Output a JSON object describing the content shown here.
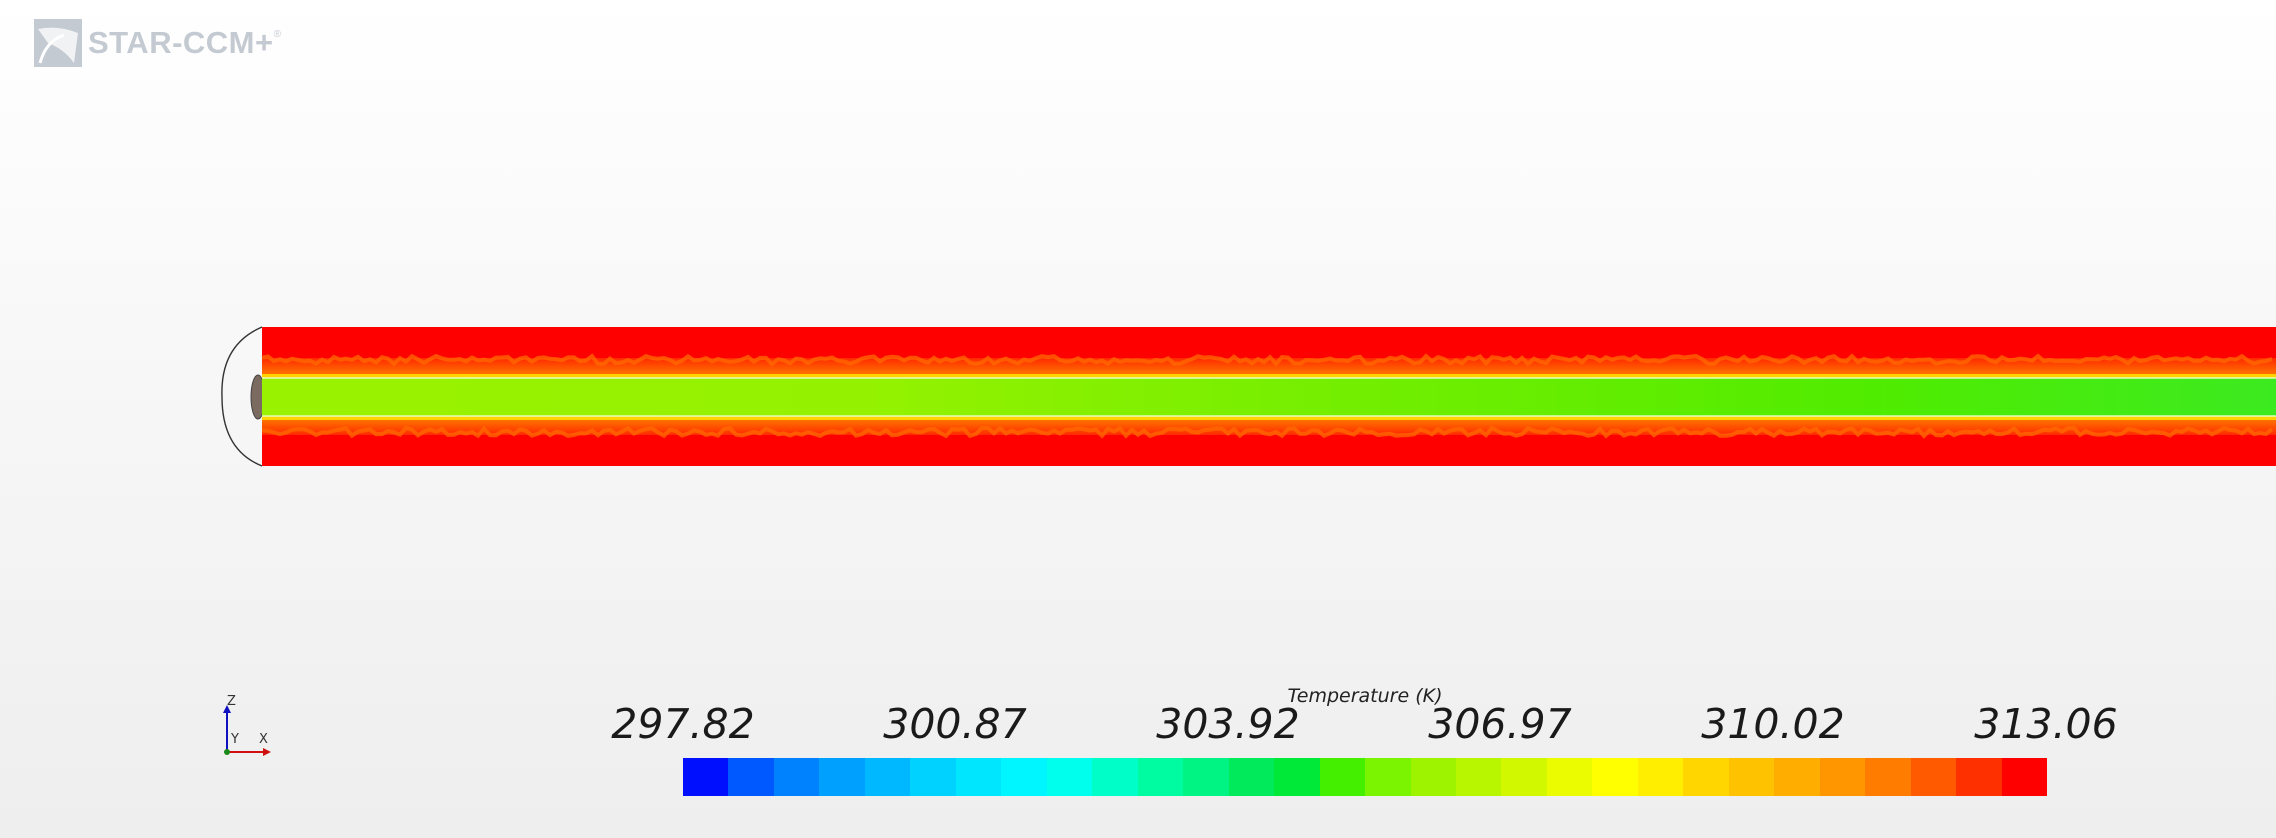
{
  "app": {
    "logo_text": "STAR-CCM+",
    "logo_mark": "®"
  },
  "scene": {
    "colors": {
      "outer_region": "#ff0000",
      "core_region": "#99f200",
      "core_region_downstream": "#44ee00",
      "transition": "#ff8a00",
      "band": "#ffd300",
      "end_cap_outline": "#333333",
      "inlet": "#7a6a60"
    }
  },
  "axes": {
    "z": "Z",
    "y": "Y",
    "x": "X",
    "colors": {
      "z": "#1010c0",
      "y": "#1a8a1a",
      "x": "#d01010"
    }
  },
  "legend": {
    "title": "Temperature (K)",
    "ticks": [
      "297.82",
      "300.87",
      "303.92",
      "306.97",
      "310.02",
      "313.06"
    ],
    "colors": [
      "#0010ff",
      "#0058ff",
      "#0082ff",
      "#00a0ff",
      "#00b8ff",
      "#00d2ff",
      "#00e6ff",
      "#00f6ff",
      "#00ffec",
      "#00ffc8",
      "#00fca0",
      "#00f484",
      "#00ea5c",
      "#00e838",
      "#44f000",
      "#7af400",
      "#9ef400",
      "#b8f600",
      "#d2f800",
      "#ecfc00",
      "#ffff00",
      "#ffee00",
      "#ffd600",
      "#ffc200",
      "#ffae00",
      "#ff9600",
      "#ff7c00",
      "#ff5a00",
      "#ff3000",
      "#ff0000"
    ]
  }
}
